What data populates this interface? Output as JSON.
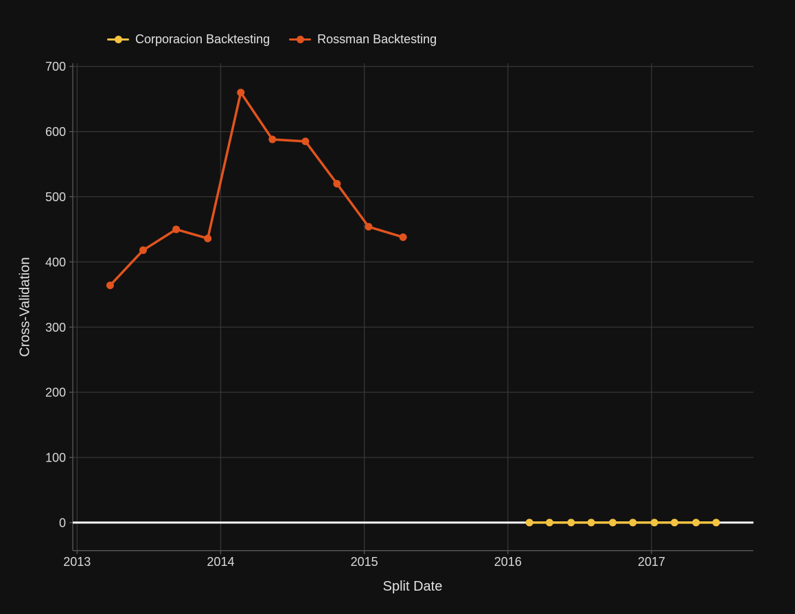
{
  "colors": {
    "background": "#111111",
    "grid": "#373737",
    "axis_line": "#5a5a5a",
    "zero_line": "#ffffff",
    "text": "#e2e2e2",
    "tick_text": "#d9d9d9",
    "series_corporacion": "#F3C341",
    "series_rossman": "#E2541E"
  },
  "axes": {
    "x_label": "Split Date",
    "y_label": "Cross-Validation",
    "x_tick_labels": [
      "2013",
      "2014",
      "2015",
      "2016",
      "2017"
    ],
    "y_tick_labels": [
      "0",
      "100",
      "200",
      "300",
      "400",
      "500",
      "600",
      "700"
    ]
  },
  "chart_data": {
    "type": "line",
    "title": "",
    "xlabel": "Split Date",
    "ylabel": "Cross-Validation",
    "x_range": [
      2012.97,
      2017.71
    ],
    "y_range": [
      -43,
      705
    ],
    "x_ticks": [
      2013,
      2014,
      2015,
      2016,
      2017
    ],
    "y_ticks": [
      0,
      100,
      200,
      300,
      400,
      500,
      600,
      700
    ],
    "grid": true,
    "zero_line": true,
    "legend_position": "top-left-horizontal",
    "series": [
      {
        "name": "Corporacion Backtesting",
        "color": "#F3C341",
        "x": [
          2016.15,
          2016.29,
          2016.44,
          2016.58,
          2016.73,
          2016.87,
          2017.02,
          2017.16,
          2017.31,
          2017.45
        ],
        "y": [
          0,
          0,
          0,
          0,
          0,
          0,
          0,
          0,
          0,
          0
        ]
      },
      {
        "name": "Rossman Backtesting",
        "color": "#E2541E",
        "x": [
          2013.23,
          2013.46,
          2013.69,
          2013.91,
          2014.14,
          2014.36,
          2014.59,
          2014.81,
          2015.03,
          2015.27
        ],
        "y": [
          364,
          418,
          450,
          436,
          660,
          588,
          585,
          520,
          454,
          438
        ]
      }
    ]
  }
}
